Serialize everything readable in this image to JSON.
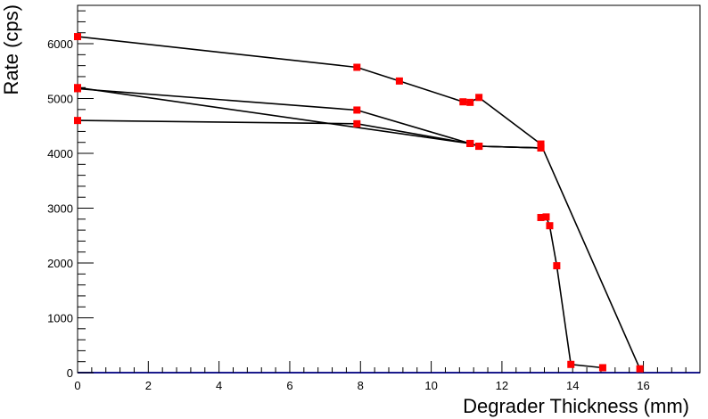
{
  "chart_data": {
    "type": "line",
    "title": "",
    "xlabel": "Degrader Thickness (mm)",
    "ylabel": "Rate (cps)",
    "xlim": [
      0,
      17.6
    ],
    "ylim": [
      0,
      6700
    ],
    "x_ticks": [
      0,
      2,
      4,
      6,
      8,
      10,
      12,
      14,
      16
    ],
    "y_ticks": [
      0,
      1000,
      2000,
      3000,
      4000,
      5000,
      6000
    ],
    "grid": false,
    "legend": "none",
    "series_color": "#000000",
    "marker_color": "#ff0000",
    "series": [
      {
        "x": [
          0,
          7.9,
          9.1,
          10.9,
          11.1,
          11.35,
          13.1,
          15.9
        ],
        "y": [
          6130,
          5570,
          5320,
          4940,
          4930,
          5020,
          4170,
          70
        ]
      },
      {
        "x": [
          0,
          7.9,
          11.1,
          11.35,
          13.1
        ],
        "y": [
          5180,
          4790,
          4180,
          4130,
          4100
        ]
      },
      {
        "x": [
          0,
          7.9,
          11.1,
          11.35,
          13.1
        ],
        "y": [
          4600,
          4540,
          4180,
          4130,
          4100
        ]
      },
      {
        "x": [
          0,
          11.1,
          11.35,
          13.1
        ],
        "y": [
          5200,
          4180,
          4130,
          4100
        ]
      },
      {
        "x": [
          13.1,
          13.25,
          13.35,
          13.55,
          13.95,
          14.85
        ],
        "y": [
          2830,
          2840,
          2680,
          1950,
          150,
          90
        ]
      }
    ]
  }
}
